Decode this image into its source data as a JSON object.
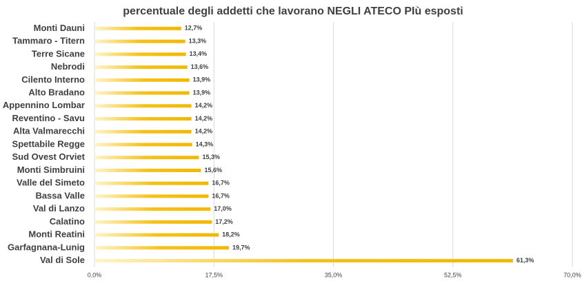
{
  "chart_data": {
    "type": "barh",
    "title": "percentuale degli addetti che lavorano NEGLI ATECO PIù esposti",
    "categories": [
      "Monti Dauni",
      "Tammaro - Titern",
      "Terre Sicane",
      "Nebrodi",
      "Cilento Interno",
      "Alto Bradano",
      "Appennino Lombar",
      "Reventino - Savu",
      "Alta Valmarecchi",
      "Spettabile Regge",
      "Sud Ovest Orviet",
      "Monti Simbruini",
      "Valle del Simeto",
      "Bassa Valle",
      "Val di Lanzo",
      "Calatino",
      "Monti Reatini",
      "Garfagnana-Lunig",
      "Val di Sole"
    ],
    "values": [
      12.7,
      13.3,
      13.4,
      13.6,
      13.9,
      13.9,
      14.2,
      14.2,
      14.2,
      14.3,
      15.3,
      15.6,
      16.7,
      16.7,
      17.0,
      17.2,
      18.2,
      19.7,
      61.3
    ],
    "value_labels": [
      "12,7%",
      "13,3%",
      "13,4%",
      "13,6%",
      "13,9%",
      "13,9%",
      "14,2%",
      "14,2%",
      "14,2%",
      "14,3%",
      "15,3%",
      "15,6%",
      "16,7%",
      "16,7%",
      "17,0%",
      "17,2%",
      "18,2%",
      "19,7%",
      "61,3%"
    ],
    "color": "#f5c21b",
    "xlim": [
      0,
      70
    ],
    "xticks": [
      {
        "value": 0,
        "label": "0,0%"
      },
      {
        "value": 17.5,
        "label": "17,5%"
      },
      {
        "value": 35,
        "label": "35,0%"
      },
      {
        "value": 52.5,
        "label": "52,5%"
      },
      {
        "value": 70,
        "label": "70,0%"
      }
    ],
    "grid": true
  }
}
